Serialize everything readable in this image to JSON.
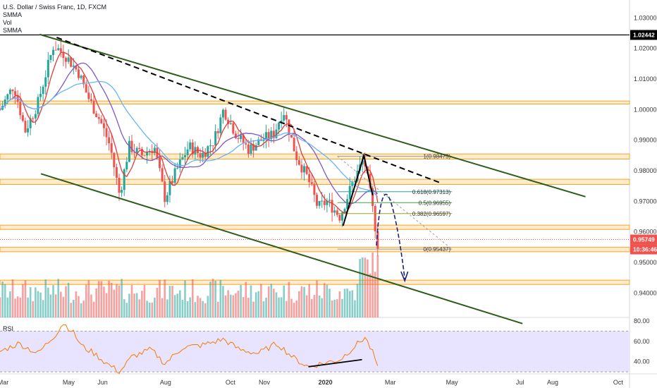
{
  "header": {
    "symbol_title": "U.S. Dollar / Swiss Franc, 1D, FXCM",
    "indicators": [
      "SMMA",
      "Vol",
      "SMMA"
    ]
  },
  "rsi_label": "RSI",
  "price_tags": {
    "resistance_level": "1.02442",
    "last_price": "0.95749",
    "countdown": "10:36:46"
  },
  "colors": {
    "bull": "#26a69a",
    "bear": "#ef5350",
    "zone": "#f5a623",
    "channel": "#2e5d1a",
    "rsi_line": "#f57c00",
    "rsi_band": "#e8e4ff",
    "fib_teal": "#26a69a",
    "forecast": "#1a237e"
  },
  "chart_data": {
    "type": "candlestick",
    "title": "U.S. Dollar / Swiss Franc, 1D, FXCM",
    "x_ticks": [
      "Mar",
      "May",
      "Jun",
      "Aug",
      "Oct",
      "Nov",
      "2020",
      "Mar",
      "May",
      "Jul",
      "Aug",
      "Oct"
    ],
    "y_ticks": [
      1.03,
      1.02,
      1.01,
      1.0,
      0.99,
      0.98,
      0.97,
      0.96,
      0.95,
      0.94
    ],
    "ylim": [
      0.932,
      1.034
    ],
    "rsi_ticks": [
      80.0,
      60.0,
      40.0
    ],
    "rsi_ylim": [
      28,
      82
    ],
    "rsi_band": [
      30,
      70
    ],
    "horizontal_line": 1.02442,
    "zones": [
      {
        "from": 1.0018,
        "to": 1.0028
      },
      {
        "from": 0.9838,
        "to": 0.9855
      },
      {
        "from": 0.9755,
        "to": 0.9772
      },
      {
        "from": 0.9608,
        "to": 0.9622
      },
      {
        "from": 0.9535,
        "to": 0.955
      },
      {
        "from": 0.9428,
        "to": 0.9442
      }
    ],
    "fib_levels": [
      {
        "label": "1(0.98473)",
        "value": 0.98473
      },
      {
        "label": "0.618(0.97313)",
        "value": 0.97313
      },
      {
        "label": "0.5(0.96955)",
        "value": 0.96955
      },
      {
        "label": "0.382(0.96597)",
        "value": 0.96597
      },
      {
        "label": "0(0.95437)",
        "value": 0.95437
      }
    ],
    "channel_upper": [
      [
        0.063,
        1.0246
      ],
      [
        0.93,
        0.9715
      ]
    ],
    "channel_lower": [
      [
        0.065,
        0.979
      ],
      [
        0.83,
        0.93
      ]
    ],
    "trendline_dashed": [
      [
        0.09,
        1.0236
      ],
      [
        0.7,
        0.976
      ]
    ],
    "price_path": [
      [
        0.0,
        1.0
      ],
      [
        0.022,
        1.008
      ],
      [
        0.04,
        0.993
      ],
      [
        0.06,
        1.002
      ],
      [
        0.085,
        1.021
      ],
      [
        0.103,
        1.018
      ],
      [
        0.125,
        1.012
      ],
      [
        0.14,
        1.004
      ],
      [
        0.16,
        0.996
      ],
      [
        0.175,
        0.988
      ],
      [
        0.19,
        0.972
      ],
      [
        0.205,
        0.988
      ],
      [
        0.225,
        0.985
      ],
      [
        0.245,
        0.988
      ],
      [
        0.262,
        0.971
      ],
      [
        0.28,
        0.98
      ],
      [
        0.3,
        0.988
      ],
      [
        0.32,
        0.985
      ],
      [
        0.34,
        0.99
      ],
      [
        0.355,
        1.0
      ],
      [
        0.375,
        0.992
      ],
      [
        0.395,
        0.987
      ],
      [
        0.415,
        0.99
      ],
      [
        0.435,
        0.992
      ],
      [
        0.45,
        1.0
      ],
      [
        0.47,
        0.985
      ],
      [
        0.49,
        0.977
      ],
      [
        0.505,
        0.968
      ],
      [
        0.52,
        0.97
      ],
      [
        0.54,
        0.965
      ],
      [
        0.56,
        0.976
      ],
      [
        0.578,
        0.984
      ],
      [
        0.59,
        0.97
      ],
      [
        0.598,
        0.959
      ],
      [
        0.6,
        0.956
      ]
    ],
    "rsi_path": [
      [
        0.0,
        50
      ],
      [
        0.03,
        58
      ],
      [
        0.06,
        48
      ],
      [
        0.09,
        68
      ],
      [
        0.1,
        78
      ],
      [
        0.115,
        70
      ],
      [
        0.13,
        55
      ],
      [
        0.15,
        48
      ],
      [
        0.17,
        38
      ],
      [
        0.19,
        30
      ],
      [
        0.21,
        45
      ],
      [
        0.24,
        52
      ],
      [
        0.262,
        38
      ],
      [
        0.29,
        54
      ],
      [
        0.32,
        56
      ],
      [
        0.355,
        62
      ],
      [
        0.38,
        52
      ],
      [
        0.41,
        48
      ],
      [
        0.44,
        58
      ],
      [
        0.47,
        42
      ],
      [
        0.49,
        35
      ],
      [
        0.51,
        38
      ],
      [
        0.54,
        42
      ],
      [
        0.565,
        56
      ],
      [
        0.58,
        64
      ],
      [
        0.595,
        45
      ],
      [
        0.6,
        33
      ]
    ],
    "rsi_divergence": [
      [
        0.49,
        35
      ],
      [
        0.575,
        42
      ]
    ]
  }
}
